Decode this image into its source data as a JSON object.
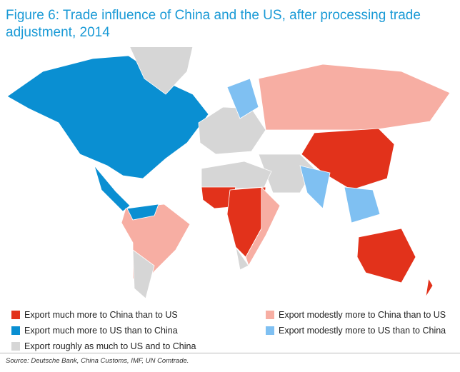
{
  "header": {
    "title": "Figure 6: Trade influence of China and the US, after processing trade adjustment, 2014"
  },
  "legend": {
    "items": [
      {
        "label": "Export much more to China than to US",
        "color": "#e2321b"
      },
      {
        "label": "Export much more to US than to China",
        "color": "#0a8fd2"
      },
      {
        "label": "Export roughly as much to US and to China",
        "color": "#d6d6d6"
      },
      {
        "label": "Export modestly more to China than to US",
        "color": "#f7aea3"
      },
      {
        "label": "Export modestly more to US than to China",
        "color": "#7fc0f2"
      }
    ]
  },
  "source": "Source: Deutsche Bank, China Customs, IMF, UN Comtrade."
}
